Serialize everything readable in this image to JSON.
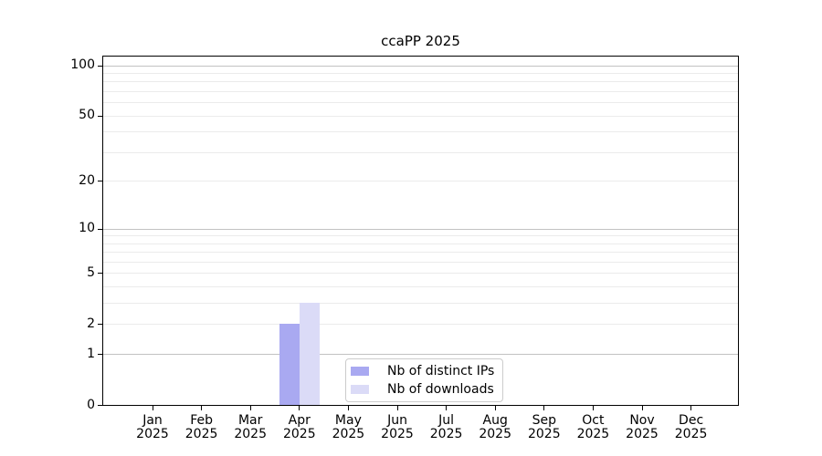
{
  "chart_data": {
    "type": "bar",
    "title": "ccaPP 2025",
    "x_categories": [
      "Jan",
      "Feb",
      "Mar",
      "Apr",
      "May",
      "Jun",
      "Jul",
      "Aug",
      "Sep",
      "Oct",
      "Nov",
      "Dec"
    ],
    "x_year": "2025",
    "series": [
      {
        "name": "Nb of distinct IPs",
        "color": "#a9a9f1",
        "values": [
          0,
          0,
          0,
          2,
          0,
          0,
          0,
          0,
          0,
          0,
          0,
          0
        ]
      },
      {
        "name": "Nb of downloads",
        "color": "#dbdbf7",
        "values": [
          0,
          0,
          0,
          3,
          0,
          0,
          0,
          0,
          0,
          0,
          0,
          0
        ]
      }
    ],
    "y_scale": "log10(value+1)",
    "ylim": [
      0,
      112
    ],
    "y_axis_ticks": [
      0,
      1,
      2,
      5,
      10,
      20,
      50,
      100
    ],
    "y_major_gridlines": [
      1,
      10,
      100
    ],
    "y_minor_gridlines": [
      2,
      3,
      4,
      5,
      6,
      7,
      8,
      9,
      20,
      30,
      40,
      50,
      60,
      70,
      80,
      90
    ],
    "grid": true,
    "legend_position": "bottom-center"
  },
  "colors": {
    "background": "#ffffff",
    "spine": "#000000",
    "minor_grid": "#ebebeb",
    "major_grid": "#c2c2c2",
    "legend_border": "#cccccc"
  }
}
